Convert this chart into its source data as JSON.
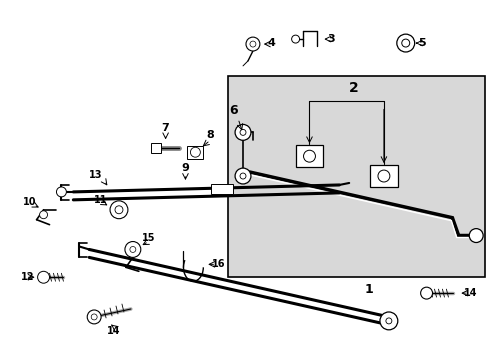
{
  "bg_color": "#ffffff",
  "box_bg": "#d8d8d8",
  "figsize": [
    4.89,
    3.6
  ],
  "dpi": 100
}
